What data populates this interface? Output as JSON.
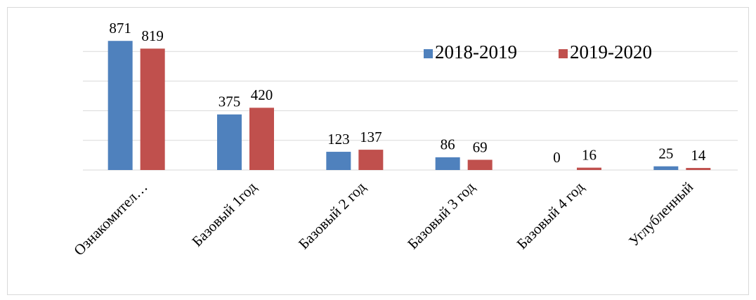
{
  "chart_data": {
    "type": "bar",
    "categories": [
      "Ознакомител…",
      "Базовый 1год",
      "Базовый 2 год",
      "Базовый 3 год",
      "Базовый 4 год",
      "Углубленный"
    ],
    "series": [
      {
        "name": "2018-2019",
        "color": "#4f81bd",
        "values": [
          871,
          375,
          123,
          86,
          0,
          25
        ]
      },
      {
        "name": "2019-2020",
        "color": "#c0504d",
        "values": [
          819,
          420,
          137,
          69,
          16,
          14
        ]
      }
    ],
    "ylim": [
      0,
      1000
    ],
    "yticks": [
      0,
      200,
      400,
      600,
      800
    ],
    "grid": true,
    "legend": "top-right"
  }
}
